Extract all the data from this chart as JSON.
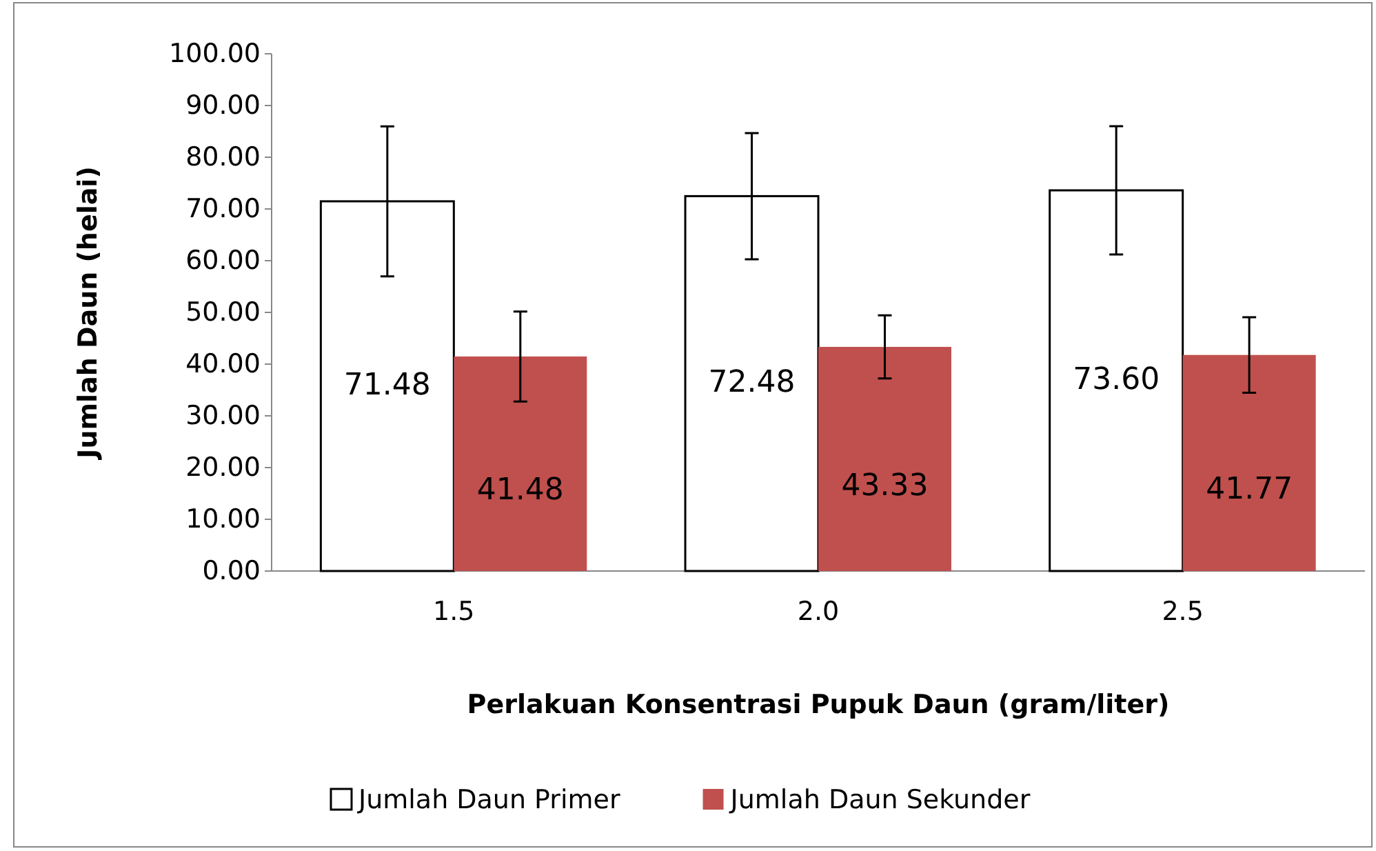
{
  "chart_data": {
    "type": "bar",
    "xlabel": "Perlakuan Konsentrasi Pupuk Daun (gram/liter)",
    "ylabel": "Jumlah Daun (helai)",
    "categories": [
      "1.5",
      "2.0",
      "2.5"
    ],
    "series": [
      {
        "name": "Jumlah Daun Primer",
        "color": "#ffffff",
        "values": [
          71.48,
          72.48,
          73.6
        ],
        "value_labels": [
          "71.48",
          "72.48",
          "73.60"
        ],
        "errors": [
          14.5,
          12.2,
          12.4
        ]
      },
      {
        "name": "Jumlah Daun Sekunder",
        "color": "#c0504d",
        "values": [
          41.48,
          43.33,
          41.77
        ],
        "value_labels": [
          "41.48",
          "43.33",
          "41.77"
        ],
        "errors": [
          8.7,
          6.1,
          7.3
        ]
      }
    ],
    "ylim": [
      0,
      100
    ],
    "yticks": [
      {
        "value": 0,
        "label": "0.00"
      },
      {
        "value": 10,
        "label": "10.00"
      },
      {
        "value": 20,
        "label": "20.00"
      },
      {
        "value": 30,
        "label": "30.00"
      },
      {
        "value": 40,
        "label": "40.00"
      },
      {
        "value": 50,
        "label": "50.00"
      },
      {
        "value": 60,
        "label": "60.00"
      },
      {
        "value": 70,
        "label": "70.00"
      },
      {
        "value": 80,
        "label": "80.00"
      },
      {
        "value": 90,
        "label": "90.00"
      },
      {
        "value": 100,
        "label": "100.00"
      }
    ],
    "legend": "bottom",
    "grid": false
  }
}
